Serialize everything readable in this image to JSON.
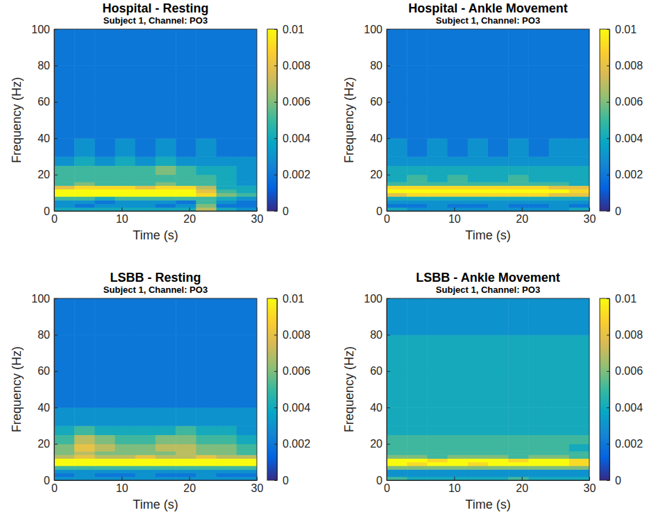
{
  "chart_data": [
    {
      "type": "heatmap",
      "title": "Hospital - Resting",
      "subtitle": "Subject 1, Channel: PO3",
      "x_label": "Time (s)",
      "y_label": "Frequency (Hz)",
      "xlim": [
        0,
        30
      ],
      "xticks": [
        0,
        10,
        20,
        30
      ],
      "ylim": [
        0,
        100
      ],
      "yticks": [
        0,
        20,
        40,
        60,
        80,
        100
      ],
      "x_bins": [
        0,
        3,
        6,
        9,
        12,
        15,
        18,
        21,
        24,
        27,
        30
      ],
      "y_bins": [
        0,
        2,
        4,
        6,
        8,
        10,
        12,
        14,
        16,
        20,
        25,
        30,
        40,
        60,
        80,
        100
      ],
      "cells": [
        [
          0.004,
          0.004,
          0.004,
          0.004,
          0.004,
          0.004,
          0.004,
          0.007,
          0.004,
          0.003
        ],
        [
          0.003,
          0.002,
          0.003,
          0.003,
          0.003,
          0.002,
          0.003,
          0.006,
          0.002,
          0.002
        ],
        [
          0.003,
          0.003,
          0.002,
          0.003,
          0.003,
          0.003,
          0.002,
          0.005,
          0.003,
          0.002
        ],
        [
          0.005,
          0.005,
          0.004,
          0.005,
          0.005,
          0.005,
          0.005,
          0.005,
          0.004,
          0.003
        ],
        [
          0.01,
          0.01,
          0.01,
          0.01,
          0.01,
          0.01,
          0.01,
          0.009,
          0.006,
          0.005
        ],
        [
          0.01,
          0.01,
          0.01,
          0.01,
          0.01,
          0.01,
          0.01,
          0.008,
          0.005,
          0.004
        ],
        [
          0.008,
          0.009,
          0.009,
          0.009,
          0.008,
          0.009,
          0.009,
          0.007,
          0.004,
          0.004
        ],
        [
          0.005,
          0.006,
          0.005,
          0.005,
          0.005,
          0.006,
          0.005,
          0.005,
          0.004,
          0.003
        ],
        [
          0.005,
          0.005,
          0.005,
          0.005,
          0.005,
          0.005,
          0.005,
          0.005,
          0.004,
          0.003
        ],
        [
          0.005,
          0.005,
          0.005,
          0.005,
          0.005,
          0.006,
          0.005,
          0.004,
          0.004,
          0.003
        ],
        [
          0.003,
          0.004,
          0.003,
          0.004,
          0.003,
          0.004,
          0.003,
          0.003,
          0.003,
          0.003
        ],
        [
          0.002,
          0.003,
          0.002,
          0.003,
          0.002,
          0.003,
          0.002,
          0.003,
          0.002,
          0.002
        ],
        [
          0.002,
          0.002,
          0.002,
          0.002,
          0.002,
          0.002,
          0.002,
          0.002,
          0.002,
          0.002
        ],
        [
          0.002,
          0.002,
          0.002,
          0.002,
          0.002,
          0.002,
          0.002,
          0.002,
          0.002,
          0.002
        ],
        [
          0.002,
          0.002,
          0.002,
          0.002,
          0.002,
          0.002,
          0.002,
          0.002,
          0.002,
          0.002
        ]
      ],
      "colorbar_range": [
        0,
        0.01
      ],
      "colorbar_ticks": [
        0,
        0.002,
        0.004,
        0.006,
        0.008,
        0.01
      ]
    },
    {
      "type": "heatmap",
      "title": "Hospital - Ankle Movement",
      "subtitle": "Subject 1, Channel: PO3",
      "x_label": "Time (s)",
      "y_label": "Frequency (Hz)",
      "xlim": [
        0,
        30
      ],
      "xticks": [
        0,
        10,
        20,
        30
      ],
      "ylim": [
        0,
        100
      ],
      "yticks": [
        0,
        20,
        40,
        60,
        80,
        100
      ],
      "x_bins": [
        0,
        3,
        6,
        9,
        12,
        15,
        18,
        21,
        24,
        27,
        30
      ],
      "y_bins": [
        0,
        2,
        4,
        6,
        8,
        10,
        12,
        14,
        16,
        20,
        25,
        30,
        40,
        60,
        80,
        100
      ],
      "cells": [
        [
          0.004,
          0.003,
          0.003,
          0.003,
          0.003,
          0.003,
          0.003,
          0.003,
          0.003,
          0.004
        ],
        [
          0.002,
          0.002,
          0.003,
          0.002,
          0.002,
          0.003,
          0.002,
          0.002,
          0.003,
          0.002
        ],
        [
          0.003,
          0.003,
          0.003,
          0.003,
          0.003,
          0.003,
          0.003,
          0.003,
          0.003,
          0.003
        ],
        [
          0.004,
          0.004,
          0.004,
          0.004,
          0.004,
          0.004,
          0.004,
          0.004,
          0.004,
          0.004
        ],
        [
          0.008,
          0.009,
          0.009,
          0.009,
          0.009,
          0.009,
          0.009,
          0.009,
          0.008,
          0.008
        ],
        [
          0.01,
          0.01,
          0.01,
          0.01,
          0.01,
          0.01,
          0.01,
          0.01,
          0.01,
          0.009
        ],
        [
          0.009,
          0.009,
          0.009,
          0.009,
          0.009,
          0.009,
          0.009,
          0.009,
          0.008,
          0.008
        ],
        [
          0.005,
          0.005,
          0.005,
          0.005,
          0.005,
          0.005,
          0.005,
          0.005,
          0.005,
          0.004
        ],
        [
          0.004,
          0.005,
          0.004,
          0.005,
          0.004,
          0.004,
          0.005,
          0.004,
          0.004,
          0.004
        ],
        [
          0.004,
          0.004,
          0.004,
          0.004,
          0.004,
          0.004,
          0.004,
          0.004,
          0.004,
          0.004
        ],
        [
          0.003,
          0.003,
          0.003,
          0.003,
          0.003,
          0.003,
          0.003,
          0.003,
          0.003,
          0.003
        ],
        [
          0.003,
          0.002,
          0.003,
          0.002,
          0.003,
          0.002,
          0.003,
          0.002,
          0.003,
          0.003
        ],
        [
          0.002,
          0.002,
          0.002,
          0.002,
          0.002,
          0.002,
          0.002,
          0.002,
          0.002,
          0.002
        ],
        [
          0.002,
          0.002,
          0.002,
          0.002,
          0.002,
          0.002,
          0.002,
          0.002,
          0.002,
          0.002
        ],
        [
          0.002,
          0.002,
          0.002,
          0.002,
          0.002,
          0.002,
          0.002,
          0.002,
          0.002,
          0.002
        ]
      ],
      "colorbar_range": [
        0,
        0.01
      ],
      "colorbar_ticks": [
        0,
        0.002,
        0.004,
        0.006,
        0.008,
        0.01
      ]
    },
    {
      "type": "heatmap",
      "title": "LSBB - Resting",
      "subtitle": "Subject 1, Channel: PO3",
      "x_label": "Time (s)",
      "y_label": "Frequency (Hz)",
      "xlim": [
        0,
        30
      ],
      "xticks": [
        0,
        10,
        20,
        30
      ],
      "ylim": [
        0,
        100
      ],
      "yticks": [
        0,
        20,
        40,
        60,
        80,
        100
      ],
      "x_bins": [
        0,
        3,
        6,
        9,
        12,
        15,
        18,
        21,
        24,
        27,
        30
      ],
      "y_bins": [
        0,
        2,
        4,
        6,
        8,
        10,
        12,
        14,
        16,
        20,
        25,
        30,
        40,
        60,
        80,
        100
      ],
      "cells": [
        [
          0.003,
          0.003,
          0.003,
          0.003,
          0.003,
          0.003,
          0.003,
          0.003,
          0.003,
          0.003
        ],
        [
          0.002,
          0.003,
          0.002,
          0.002,
          0.003,
          0.002,
          0.002,
          0.003,
          0.002,
          0.002
        ],
        [
          0.003,
          0.003,
          0.003,
          0.003,
          0.003,
          0.003,
          0.003,
          0.003,
          0.003,
          0.003
        ],
        [
          0.005,
          0.005,
          0.005,
          0.005,
          0.005,
          0.005,
          0.005,
          0.005,
          0.005,
          0.005
        ],
        [
          0.01,
          0.01,
          0.01,
          0.01,
          0.01,
          0.01,
          0.01,
          0.01,
          0.01,
          0.01
        ],
        [
          0.01,
          0.01,
          0.01,
          0.01,
          0.01,
          0.01,
          0.01,
          0.01,
          0.01,
          0.01
        ],
        [
          0.007,
          0.008,
          0.007,
          0.007,
          0.008,
          0.007,
          0.007,
          0.008,
          0.007,
          0.007
        ],
        [
          0.006,
          0.007,
          0.006,
          0.006,
          0.006,
          0.006,
          0.007,
          0.006,
          0.006,
          0.005
        ],
        [
          0.006,
          0.008,
          0.007,
          0.006,
          0.006,
          0.007,
          0.007,
          0.006,
          0.006,
          0.005
        ],
        [
          0.005,
          0.007,
          0.006,
          0.005,
          0.005,
          0.006,
          0.006,
          0.005,
          0.005,
          0.004
        ],
        [
          0.004,
          0.005,
          0.004,
          0.004,
          0.004,
          0.004,
          0.005,
          0.004,
          0.004,
          0.003
        ],
        [
          0.003,
          0.003,
          0.003,
          0.003,
          0.003,
          0.003,
          0.003,
          0.003,
          0.003,
          0.003
        ],
        [
          0.002,
          0.002,
          0.002,
          0.002,
          0.002,
          0.002,
          0.002,
          0.002,
          0.002,
          0.002
        ],
        [
          0.002,
          0.002,
          0.002,
          0.002,
          0.002,
          0.002,
          0.002,
          0.002,
          0.002,
          0.002
        ],
        [
          0.002,
          0.002,
          0.002,
          0.002,
          0.002,
          0.002,
          0.002,
          0.002,
          0.002,
          0.002
        ]
      ],
      "colorbar_range": [
        0,
        0.01
      ],
      "colorbar_ticks": [
        0,
        0.002,
        0.004,
        0.006,
        0.008,
        0.01
      ]
    },
    {
      "type": "heatmap",
      "title": "LSBB - Ankle Movement",
      "subtitle": "Subject 1, Channel: PO3",
      "x_label": "Time (s)",
      "y_label": "Frequency (Hz)",
      "xlim": [
        0,
        30
      ],
      "xticks": [
        0,
        10,
        20,
        30
      ],
      "ylim": [
        0,
        100
      ],
      "yticks": [
        0,
        20,
        40,
        60,
        80,
        100
      ],
      "x_bins": [
        0,
        3,
        6,
        9,
        12,
        15,
        18,
        21,
        24,
        27,
        30
      ],
      "y_bins": [
        0,
        2,
        4,
        6,
        8,
        10,
        12,
        14,
        16,
        20,
        25,
        30,
        40,
        60,
        80,
        100
      ],
      "cells": [
        [
          0.005,
          0.004,
          0.004,
          0.004,
          0.004,
          0.004,
          0.005,
          0.004,
          0.004,
          0.004
        ],
        [
          0.003,
          0.003,
          0.003,
          0.003,
          0.003,
          0.003,
          0.003,
          0.003,
          0.003,
          0.003
        ],
        [
          0.003,
          0.003,
          0.003,
          0.003,
          0.003,
          0.003,
          0.003,
          0.003,
          0.003,
          0.003
        ],
        [
          0.006,
          0.006,
          0.006,
          0.006,
          0.006,
          0.006,
          0.006,
          0.006,
          0.006,
          0.006
        ],
        [
          0.01,
          0.009,
          0.01,
          0.01,
          0.009,
          0.01,
          0.01,
          0.01,
          0.01,
          0.009
        ],
        [
          0.01,
          0.01,
          0.009,
          0.01,
          0.01,
          0.01,
          0.009,
          0.01,
          0.01,
          0.009
        ],
        [
          0.006,
          0.006,
          0.005,
          0.006,
          0.006,
          0.006,
          0.005,
          0.006,
          0.006,
          0.005
        ],
        [
          0.005,
          0.005,
          0.005,
          0.005,
          0.005,
          0.005,
          0.005,
          0.005,
          0.005,
          0.005
        ],
        [
          0.005,
          0.005,
          0.005,
          0.005,
          0.005,
          0.005,
          0.005,
          0.005,
          0.005,
          0.004
        ],
        [
          0.005,
          0.005,
          0.005,
          0.005,
          0.005,
          0.005,
          0.005,
          0.005,
          0.005,
          0.005
        ],
        [
          0.004,
          0.004,
          0.004,
          0.004,
          0.004,
          0.004,
          0.004,
          0.004,
          0.004,
          0.004
        ],
        [
          0.004,
          0.004,
          0.004,
          0.004,
          0.004,
          0.004,
          0.004,
          0.004,
          0.004,
          0.004
        ],
        [
          0.004,
          0.004,
          0.004,
          0.004,
          0.004,
          0.004,
          0.004,
          0.004,
          0.004,
          0.004
        ],
        [
          0.004,
          0.004,
          0.004,
          0.004,
          0.004,
          0.004,
          0.004,
          0.004,
          0.004,
          0.004
        ],
        [
          0.003,
          0.003,
          0.003,
          0.003,
          0.003,
          0.003,
          0.003,
          0.003,
          0.003,
          0.003
        ]
      ],
      "colorbar_range": [
        0,
        0.01
      ],
      "colorbar_ticks": [
        0,
        0.002,
        0.004,
        0.006,
        0.008,
        0.01
      ]
    }
  ]
}
